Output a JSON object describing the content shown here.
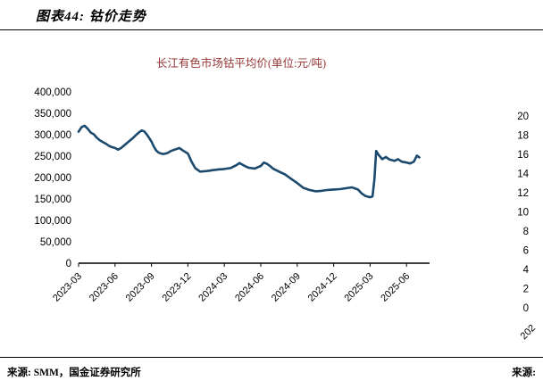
{
  "figure": {
    "label": "图表44: 钴价走势"
  },
  "footer": {
    "source_left": "来源: SMM，国金证券研究所",
    "source_right": "来源:"
  },
  "chart_data": {
    "type": "line",
    "title": "长江有色市场钴平均价(单位:元/吨)",
    "ylabel": "",
    "xlabel": "",
    "ylim": [
      0,
      400000
    ],
    "y_tick_labels": [
      "0",
      "50,000",
      "100,000",
      "150,000",
      "200,000",
      "250,000",
      "300,000",
      "350,000",
      "400,000"
    ],
    "x_tick_labels": [
      "2023-03",
      "2023-06",
      "2023-09",
      "2023-12",
      "2024-03",
      "2024-06",
      "2024-09",
      "2024-12",
      "2025-03",
      "2025-06"
    ],
    "x_tick_months": [
      0,
      3,
      6,
      9,
      12,
      15,
      18,
      21,
      24,
      27
    ],
    "grid": "off",
    "legend": "none",
    "line_color": "#1C4A6E",
    "title_color": "#943634",
    "series": [
      {
        "name": "长江有色市场钴平均价",
        "unit": "元/吨",
        "x_unit": "months_since_2023-03",
        "points": [
          [
            0,
            307000
          ],
          [
            0.25,
            318000
          ],
          [
            0.5,
            321000
          ],
          [
            0.75,
            314000
          ],
          [
            1,
            305000
          ],
          [
            1.25,
            301000
          ],
          [
            1.5,
            293000
          ],
          [
            1.75,
            287000
          ],
          [
            2,
            283000
          ],
          [
            2.25,
            279000
          ],
          [
            2.5,
            274000
          ],
          [
            2.75,
            271000
          ],
          [
            3,
            269000
          ],
          [
            3.25,
            265000
          ],
          [
            3.5,
            269000
          ],
          [
            3.75,
            275000
          ],
          [
            4,
            281000
          ],
          [
            4.25,
            287000
          ],
          [
            4.5,
            293000
          ],
          [
            4.75,
            300000
          ],
          [
            5,
            306000
          ],
          [
            5.2,
            310000
          ],
          [
            5.4,
            308000
          ],
          [
            5.6,
            301000
          ],
          [
            5.8,
            293000
          ],
          [
            6,
            284000
          ],
          [
            6.2,
            272000
          ],
          [
            6.4,
            263000
          ],
          [
            6.6,
            258000
          ],
          [
            6.8,
            256000
          ],
          [
            7,
            255000
          ],
          [
            7.3,
            257000
          ],
          [
            7.6,
            262000
          ],
          [
            8,
            266000
          ],
          [
            8.3,
            269000
          ],
          [
            8.6,
            263000
          ],
          [
            9,
            256000
          ],
          [
            9.3,
            237000
          ],
          [
            9.6,
            222000
          ],
          [
            10,
            214000
          ],
          [
            10.5,
            215000
          ],
          [
            11,
            217000
          ],
          [
            11.5,
            219000
          ],
          [
            12,
            220000
          ],
          [
            12.5,
            222000
          ],
          [
            13,
            229000
          ],
          [
            13.25,
            234000
          ],
          [
            13.5,
            230000
          ],
          [
            13.75,
            226000
          ],
          [
            14,
            223000
          ],
          [
            14.5,
            221000
          ],
          [
            15,
            227000
          ],
          [
            15.25,
            235000
          ],
          [
            15.5,
            232000
          ],
          [
            15.75,
            227000
          ],
          [
            16,
            221000
          ],
          [
            16.5,
            214000
          ],
          [
            17,
            207000
          ],
          [
            17.5,
            197000
          ],
          [
            18,
            187000
          ],
          [
            18.5,
            176000
          ],
          [
            19,
            171000
          ],
          [
            19.5,
            168000
          ],
          [
            20,
            169000
          ],
          [
            20.5,
            171000
          ],
          [
            21,
            172000
          ],
          [
            21.5,
            173000
          ],
          [
            22,
            175000
          ],
          [
            22.5,
            177000
          ],
          [
            23,
            172000
          ],
          [
            23.3,
            163000
          ],
          [
            23.6,
            157000
          ],
          [
            24,
            154000
          ],
          [
            24.2,
            156000
          ],
          [
            24.35,
            195000
          ],
          [
            24.5,
            262000
          ],
          [
            24.7,
            253000
          ],
          [
            25,
            243000
          ],
          [
            25.3,
            248000
          ],
          [
            25.6,
            242000
          ],
          [
            26,
            239000
          ],
          [
            26.3,
            243000
          ],
          [
            26.6,
            237000
          ],
          [
            27,
            235000
          ],
          [
            27.3,
            233000
          ],
          [
            27.6,
            237000
          ],
          [
            27.85,
            251000
          ],
          [
            28.05,
            247000
          ]
        ]
      }
    ],
    "right_edge_axis": {
      "note": "partially visible axis of adjacent cropped chart",
      "tick_labels": [
        "20",
        "18",
        "16",
        "14",
        "12",
        "10",
        "8",
        "6",
        "4",
        "2",
        "0"
      ],
      "partial_x_label": "202"
    }
  }
}
